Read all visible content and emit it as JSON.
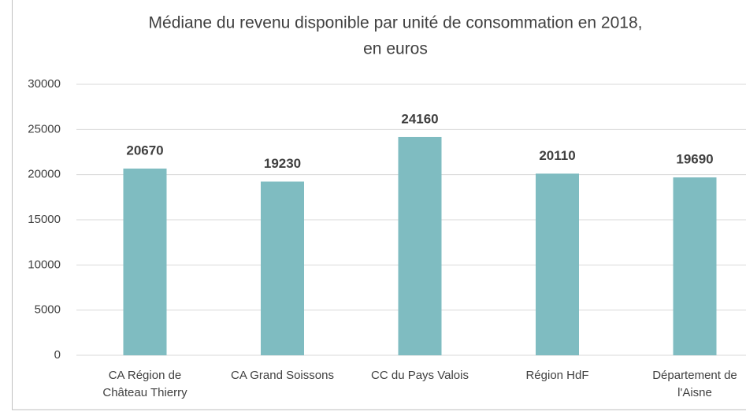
{
  "chart_data": {
    "type": "bar",
    "title": [
      "Médiane du revenu disponible par unité de consommation en 2018,",
      "en euros"
    ],
    "categories": [
      "CA Région de Château Thierry",
      "CA Grand Soissons",
      "CC du Pays Valois",
      "Région HdF",
      "Département de l'Aisne"
    ],
    "values": [
      20670,
      19230,
      24160,
      20110,
      19690
    ],
    "color": "#7fbcc1",
    "ylim": [
      0,
      30000
    ],
    "yticks": [
      0,
      5000,
      10000,
      15000,
      20000,
      25000,
      30000
    ],
    "grid": true
  }
}
